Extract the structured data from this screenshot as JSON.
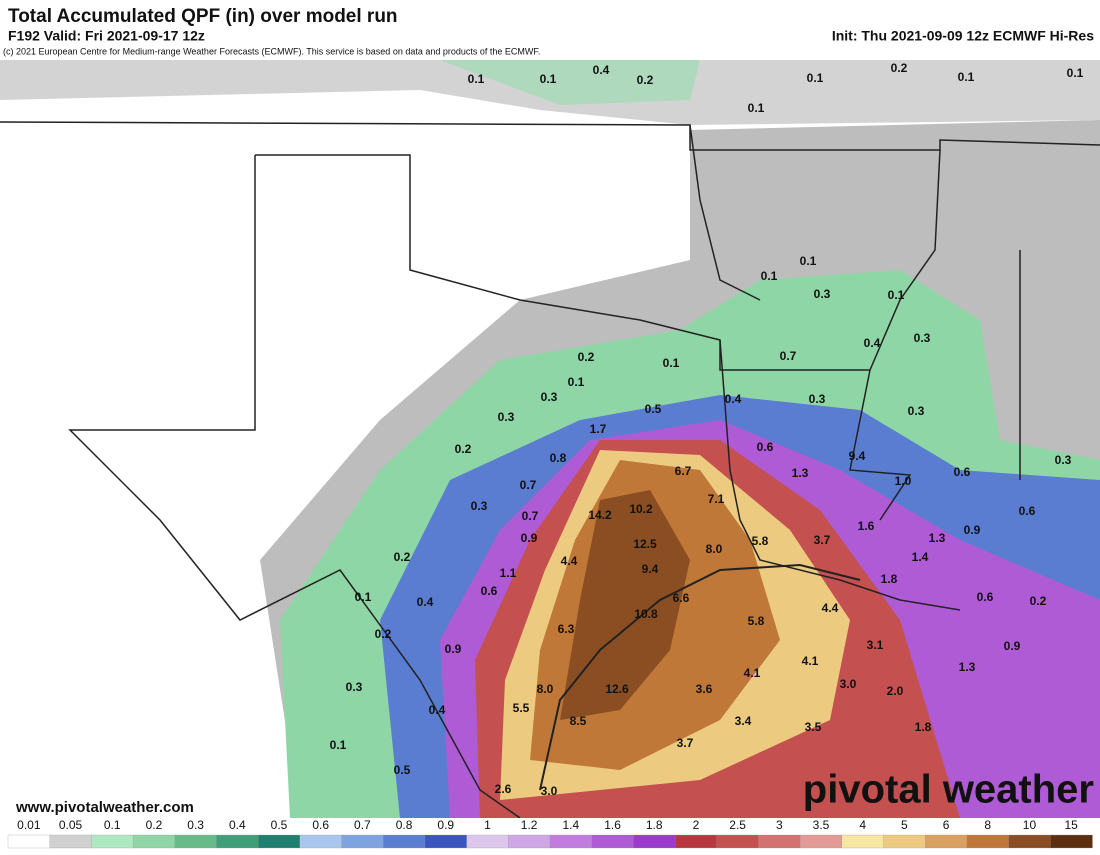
{
  "header": {
    "title": "Total Accumulated QPF (in) over model run",
    "valid": "F192 Valid: Fri 2021-09-17 12z",
    "init": "Init: Thu 2021-09-09 12z ECMWF Hi-Res",
    "copyright": "(c) 2021 European Centre for Medium-range Weather Forecasts (ECMWF). This service is based on data and products of the ECMWF."
  },
  "map": {
    "labels": [
      "0.1",
      "0.1",
      "0.4",
      "0.2",
      "0.1",
      "0.2",
      "0.1",
      "0.1",
      "0.1",
      "0.1",
      "0.1",
      "0.3",
      "0.1",
      "0.7",
      "0.4",
      "0.3",
      "0.2",
      "0.1",
      "0.1",
      "0.3",
      "0.4",
      "0.3",
      "0.3",
      "0.5",
      "0.3",
      "1.7",
      "0.2",
      "0.8",
      "0.6",
      "9.4",
      "0.7",
      "6.7",
      "1.3",
      "1.0",
      "0.6",
      "0.3",
      "0.3",
      "7.1",
      "0.7",
      "14.2",
      "10.2",
      "1.6",
      "0.6",
      "0.9",
      "0.9",
      "12.5",
      "8.0",
      "5.8",
      "3.7",
      "1.3",
      "1.4",
      "0.2",
      "4.4",
      "1.1",
      "9.4",
      "1.8",
      "0.1",
      "0.6",
      "0.4",
      "6.6",
      "10.8",
      "4.4",
      "0.6",
      "0.2",
      "5.8",
      "0.2",
      "6.3",
      "3.1",
      "0.9",
      "0.9",
      "4.1",
      "4.1",
      "1.3",
      "0.3",
      "8.0",
      "12.6",
      "3.6",
      "3.0",
      "2.0",
      "5.5",
      "0.4",
      "8.5",
      "3.4",
      "3.5",
      "1.8",
      "0.1",
      "3.7",
      "0.5",
      "2.6",
      "3.0"
    ],
    "website": "www.pivotalweather.com",
    "brand": "pivotal weather"
  },
  "colorbar": {
    "labels": [
      "0.01",
      "0.05",
      "0.1",
      "0.2",
      "0.3",
      "0.4",
      "0.5",
      "0.6",
      "0.7",
      "0.8",
      "0.9",
      "1",
      "1.2",
      "1.4",
      "1.6",
      "1.8",
      "2",
      "2.5",
      "3",
      "3.5",
      "4",
      "5",
      "6",
      "8",
      "10",
      "15"
    ],
    "colors": [
      "#ffffff",
      "#d0d0d0",
      "#aee8c0",
      "#8fd6a6",
      "#66bb88",
      "#3f9f78",
      "#1f7f70",
      "#a9c7ec",
      "#7ea3e0",
      "#5a7dd2",
      "#3a55c0",
      "#dcc6ec",
      "#cfa6e6",
      "#c07ddf",
      "#b05bd6",
      "#9b3bcc",
      "#b8383f",
      "#c45050",
      "#d47272",
      "#e39a96",
      "#f5e6a0",
      "#eccb80",
      "#d9a060",
      "#c07838",
      "#8b4e22",
      "#5a3010"
    ]
  }
}
